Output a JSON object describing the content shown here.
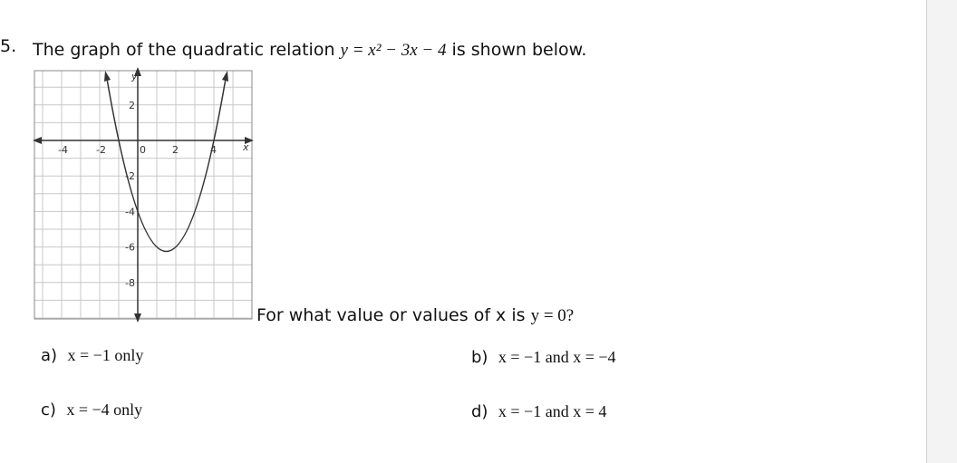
{
  "question": {
    "number": "5.",
    "stem_before": "The graph of the quadratic relation",
    "equation": "y = x² − 3x − 4",
    "stem_after": "is shown below.",
    "prompt_before": "For what value or values of x is",
    "prompt_math": "y = 0?"
  },
  "graph": {
    "x_label": "x",
    "y_label": "y",
    "x_tick_labels": [
      "-4",
      "-2",
      "0",
      "2",
      "4"
    ],
    "y_tick_labels": [
      "2",
      "-2",
      "-4",
      "-6",
      "-8"
    ]
  },
  "options": [
    {
      "label": "a)",
      "text": "x = −1 only"
    },
    {
      "label": "b)",
      "text": "x = −1 and x = −4"
    },
    {
      "label": "c)",
      "text": "x = −4 only"
    },
    {
      "label": "d)",
      "text": "x = −1 and x = 4"
    }
  ]
}
